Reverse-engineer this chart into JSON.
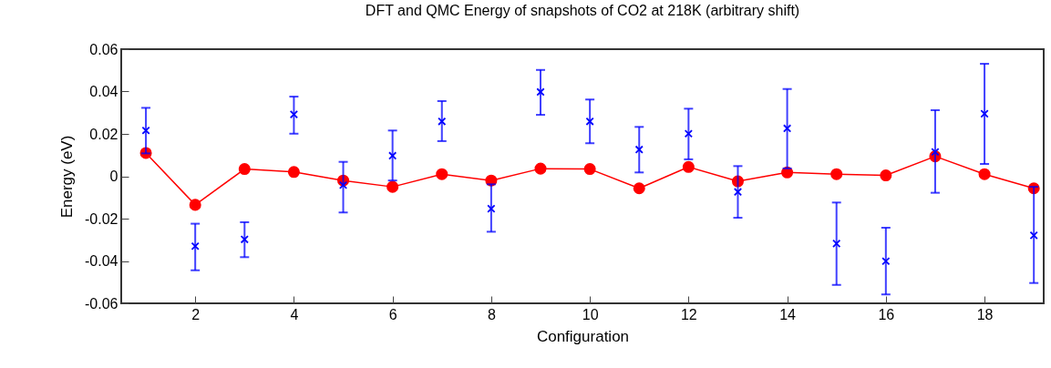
{
  "chart_data": {
    "type": "line",
    "title": "DFT and QMC Energy of snapshots of CO2 at 218K (arbitrary shift)",
    "xlabel": "Configuration",
    "ylabel": "Energy (eV)",
    "x": [
      1,
      2,
      3,
      4,
      5,
      6,
      7,
      8,
      9,
      10,
      11,
      12,
      13,
      14,
      15,
      16,
      17,
      18,
      19
    ],
    "series": [
      {
        "type": "line",
        "color": "#ff0000",
        "marker": "circle",
        "values": [
          0.011,
          -0.0135,
          0.0034,
          0.002,
          -0.002,
          -0.005,
          0.001,
          -0.002,
          0.0036,
          0.0034,
          -0.0057,
          0.0044,
          -0.0024,
          0.0018,
          0.001,
          0.0004,
          0.0094,
          0.001,
          -0.0057
        ]
      },
      {
        "type": "scatter",
        "color": "#0000ff",
        "marker": "cross",
        "values": [
          0.0216,
          -0.033,
          -0.0298,
          0.0292,
          -0.0042,
          0.0097,
          0.0259,
          -0.0153,
          0.0398,
          0.0259,
          0.0126,
          0.0201,
          -0.0074,
          0.0226,
          -0.0318,
          -0.0401,
          0.0115,
          0.0295,
          -0.0279
        ],
        "errors": [
          [
            0.0108,
            0.0323
          ],
          [
            -0.0444,
            -0.0224
          ],
          [
            -0.0382,
            -0.0217
          ],
          [
            0.0201,
            0.0376
          ],
          [
            -0.0171,
            0.0068
          ],
          [
            -0.002,
            0.0216
          ],
          [
            0.0166,
            0.0355
          ],
          [
            -0.0262,
            -0.0038
          ],
          [
            0.029,
            0.0502
          ],
          [
            0.0156,
            0.0362
          ],
          [
            0.0018,
            0.0233
          ],
          [
            0.008,
            0.0319
          ],
          [
            -0.0196,
            0.0048
          ],
          [
            0.0037,
            0.0412
          ],
          [
            -0.0513,
            -0.0124
          ],
          [
            -0.0558,
            -0.0243
          ],
          [
            -0.0078,
            0.0312
          ],
          [
            0.0058,
            0.0531
          ],
          [
            -0.0504,
            -0.005
          ]
        ]
      }
    ],
    "xlim": [
      0.5,
      19.2
    ],
    "xticks": [
      2,
      4,
      6,
      8,
      10,
      12,
      14,
      16,
      18
    ],
    "ylim": [
      -0.06,
      0.06
    ],
    "yticks": [
      -0.06,
      -0.04,
      -0.02,
      0,
      0.02,
      0.04,
      0.06
    ],
    "grid": false
  }
}
